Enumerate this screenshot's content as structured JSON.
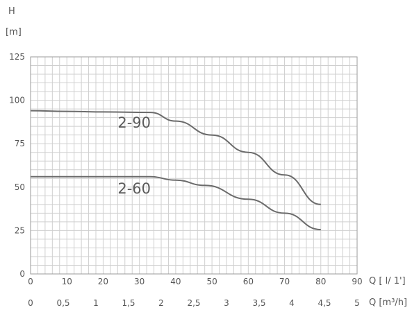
{
  "chart_data": {
    "type": "line",
    "ylabel": "H",
    "yunit": "[m]",
    "ylim": [
      0,
      125
    ],
    "yticks": [
      0,
      25,
      50,
      75,
      100,
      125
    ],
    "x1": {
      "unit_label": "Q [ l/ 1']",
      "lim": [
        0,
        90
      ],
      "ticks": [
        0,
        10,
        20,
        30,
        40,
        50,
        60,
        70,
        80,
        90
      ],
      "tick_labels": [
        "0",
        "10",
        "20",
        "30",
        "40",
        "50",
        "60",
        "70",
        "80",
        "90"
      ]
    },
    "x2": {
      "unit_label": "Q [m³/h]",
      "lim": [
        0,
        5
      ],
      "ticks": [
        0,
        0.5,
        1,
        1.5,
        2,
        2.5,
        3,
        3.5,
        4,
        4.5,
        5
      ],
      "tick_labels": [
        "0",
        "0,5",
        "1",
        "1,5",
        "2",
        "2,5",
        "3",
        "3,5",
        "4",
        "4,5",
        "5"
      ]
    },
    "grid": true,
    "series": [
      {
        "name": "2-90",
        "color": "#6b6b6b",
        "x": [
          0,
          10,
          20,
          33,
          40,
          50,
          60,
          70,
          80
        ],
        "y": [
          94,
          93.6,
          93.3,
          93,
          88,
          80,
          70,
          57,
          40
        ]
      },
      {
        "name": "2-60",
        "color": "#6b6b6b",
        "x": [
          0,
          10,
          20,
          33,
          40,
          48,
          60,
          70,
          80
        ],
        "y": [
          56,
          56,
          56,
          56,
          54,
          51,
          43,
          35,
          25.5
        ]
      }
    ]
  }
}
